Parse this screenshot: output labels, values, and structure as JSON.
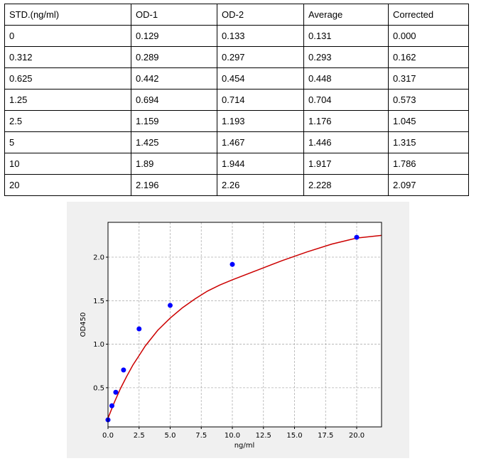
{
  "table": {
    "headers": [
      "STD.(ng/ml)",
      "OD-1",
      "OD-2",
      "Average",
      "Corrected"
    ],
    "rows": [
      [
        "0",
        "0.129",
        "0.133",
        "0.131",
        "0.000"
      ],
      [
        "0.312",
        "0.289",
        "0.297",
        "0.293",
        "0.162"
      ],
      [
        "0.625",
        "0.442",
        "0.454",
        "0.448",
        "0.317"
      ],
      [
        "1.25",
        "0.694",
        "0.714",
        "0.704",
        "0.573"
      ],
      [
        "2.5",
        "1.159",
        "1.193",
        "1.176",
        "1.045"
      ],
      [
        "5",
        "1.425",
        "1.467",
        "1.446",
        "1.315"
      ],
      [
        "10",
        "1.89",
        "1.944",
        "1.917",
        "1.786"
      ],
      [
        "20",
        "2.196",
        "2.26",
        "2.228",
        "2.097"
      ]
    ]
  },
  "chart_data": {
    "type": "scatter",
    "title": "",
    "xlabel": "ng/ml",
    "ylabel": "OD450",
    "xlim": [
      0,
      22
    ],
    "ylim": [
      0.05,
      2.4
    ],
    "xticks": [
      "0.0",
      "2.5",
      "5.0",
      "7.5",
      "10.0",
      "12.5",
      "15.0",
      "17.5",
      "20.0"
    ],
    "yticks": [
      "0.5",
      "1.0",
      "1.5",
      "2.0"
    ],
    "grid": true,
    "point_color": "#0000ff",
    "curve_color": "#cc0000",
    "points": {
      "x": [
        0,
        0.312,
        0.625,
        1.25,
        2.5,
        5,
        10,
        20
      ],
      "y": [
        0.131,
        0.293,
        0.448,
        0.704,
        1.176,
        1.446,
        1.917,
        2.228
      ]
    },
    "fit_curve": {
      "x": [
        0,
        0.25,
        0.5,
        0.75,
        1,
        1.5,
        2,
        2.5,
        3,
        4,
        5,
        6,
        7,
        8,
        9,
        10,
        12,
        14,
        16,
        18,
        20,
        22
      ],
      "y": [
        0.15,
        0.24,
        0.33,
        0.41,
        0.49,
        0.63,
        0.76,
        0.87,
        0.98,
        1.16,
        1.3,
        1.42,
        1.52,
        1.61,
        1.68,
        1.74,
        1.85,
        1.96,
        2.06,
        2.15,
        2.22,
        2.25
      ]
    }
  }
}
